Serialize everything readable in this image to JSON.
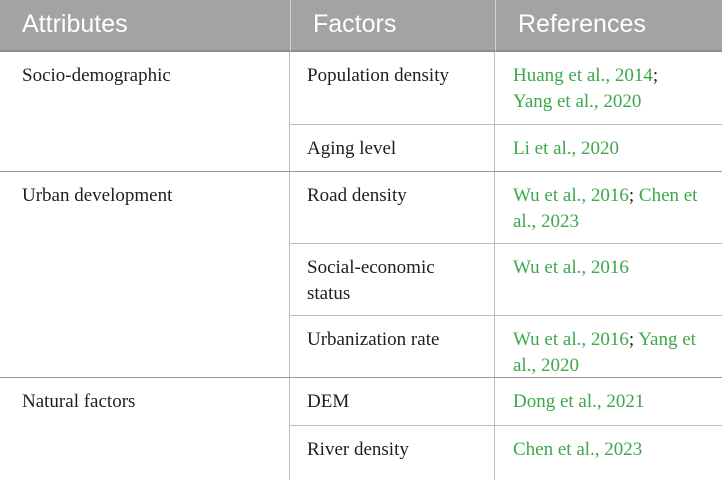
{
  "header": {
    "col1": "Attributes",
    "col2": "Factors",
    "col3": "References"
  },
  "rows": [
    {
      "attribute": "Socio-demographic",
      "factor": "Population density",
      "refs": [
        "Huang et al., 2014",
        ";",
        "Yang et al., 2020"
      ]
    },
    {
      "factor": "Aging level",
      "refs": [
        "Li et al., 2020"
      ]
    },
    {
      "attribute": "Urban development",
      "factor": "Road density",
      "refs": [
        "Wu et al., 2016",
        "; ",
        "Chen et al., 2023"
      ]
    },
    {
      "factor_line1": "Social-economic",
      "factor_line2": "status",
      "refs": [
        "Wu et al., 2016"
      ]
    },
    {
      "factor": "Urbanization rate",
      "refs": [
        "Wu et al., 2016",
        "; ",
        "Yang et al., 2020"
      ]
    },
    {
      "attribute": "Natural factors",
      "factor": "DEM",
      "refs": [
        "Dong et al., 2021"
      ]
    },
    {
      "factor": "River density",
      "refs": [
        "Chen et al., 2023"
      ]
    }
  ]
}
